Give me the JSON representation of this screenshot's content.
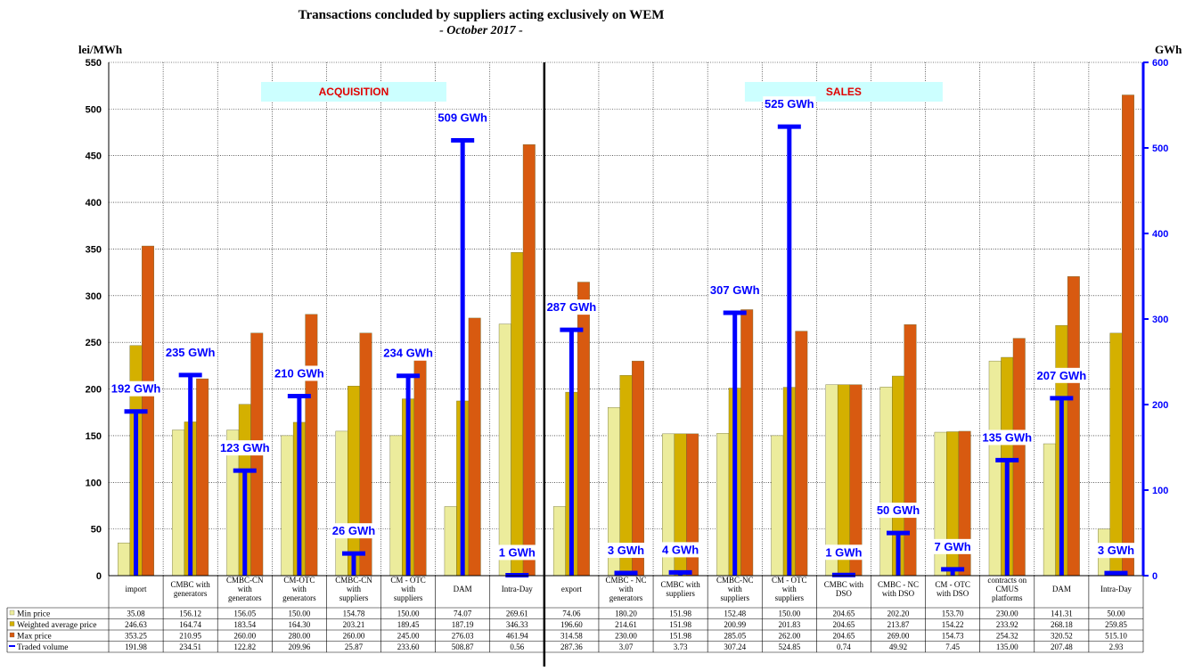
{
  "chart_data": {
    "type": "bar",
    "title": "Transactions concluded by suppliers acting exclusively on WEM",
    "subtitle": "- October 2017 -",
    "y_left_unit": "lei/MWh",
    "y_right_unit": "GWh",
    "ylim_left": [
      0,
      550
    ],
    "ylim_right": [
      0,
      600
    ],
    "y_left_ticks": [
      "0",
      "50",
      "100",
      "150",
      "200",
      "250",
      "300",
      "350",
      "400",
      "450",
      "500",
      "550"
    ],
    "y_right_ticks": [
      "0",
      "100",
      "200",
      "300",
      "400",
      "500",
      "600"
    ],
    "grid": true,
    "sections": [
      "ACQUISITION",
      "SALES"
    ],
    "categories": [
      [
        "import"
      ],
      [
        "CMBC with",
        "generators"
      ],
      [
        "CMBC-CN",
        "with",
        "generators"
      ],
      [
        "CM-OTC",
        "with",
        "generators"
      ],
      [
        "CMBC-CN",
        "with",
        "suppliers"
      ],
      [
        "CM - OTC",
        "with",
        "suppliers"
      ],
      [
        "DAM"
      ],
      [
        "Intra-Day"
      ],
      [
        "export"
      ],
      [
        "CMBC - NC",
        "with",
        "generators"
      ],
      [
        "CMBC with",
        "suppliers"
      ],
      [
        "CMBC-NC",
        "with",
        "suppliers"
      ],
      [
        "CM - OTC",
        "with",
        "suppliers"
      ],
      [
        "CMBC with",
        "DSO"
      ],
      [
        "CMBC - NC",
        "with DSO"
      ],
      [
        "CM - OTC",
        "with DSO"
      ],
      [
        "contracts on",
        "CMUS",
        "platforms"
      ],
      [
        "DAM"
      ],
      [
        "Intra-Day"
      ]
    ],
    "series": [
      {
        "name": "Min price",
        "color": "#ecec9c",
        "axis": "left",
        "values": [
          35.08,
          156.12,
          156.05,
          150.0,
          154.78,
          150.0,
          74.07,
          269.61,
          74.06,
          180.2,
          151.98,
          152.48,
          150.0,
          204.65,
          202.2,
          153.7,
          230.0,
          141.31,
          50.0
        ],
        "labels": [
          "35.08",
          "156.12",
          "156.05",
          "150.00",
          "154.78",
          "150.00",
          "74.07",
          "269.61",
          "74.06",
          "180.20",
          "151.98",
          "152.48",
          "150.00",
          "204.65",
          "202.20",
          "153.70",
          "230.00",
          "141.31",
          "50.00"
        ]
      },
      {
        "name": "Weighted average price",
        "color": "#d4b000",
        "axis": "left",
        "values": [
          246.63,
          164.74,
          183.54,
          164.3,
          203.21,
          189.45,
          187.19,
          346.33,
          196.6,
          214.61,
          151.98,
          200.99,
          201.83,
          204.65,
          213.87,
          154.22,
          233.92,
          268.18,
          259.85
        ],
        "labels": [
          "246.63",
          "164.74",
          "183.54",
          "164.30",
          "203.21",
          "189.45",
          "187.19",
          "346.33",
          "196.60",
          "214.61",
          "151.98",
          "200.99",
          "201.83",
          "204.65",
          "213.87",
          "154.22",
          "233.92",
          "268.18",
          "259.85"
        ]
      },
      {
        "name": "Max price",
        "color": "#d85a10",
        "axis": "left",
        "values": [
          353.25,
          210.95,
          260.0,
          280.0,
          260.0,
          245.0,
          276.03,
          461.94,
          314.58,
          230.0,
          151.98,
          285.05,
          262.0,
          204.65,
          269.0,
          154.73,
          254.32,
          320.52,
          515.1
        ],
        "labels": [
          "353.25",
          "210.95",
          "260.00",
          "280.00",
          "260.00",
          "245.00",
          "276.03",
          "461.94",
          "314.58",
          "230.00",
          "151.98",
          "285.05",
          "262.00",
          "204.65",
          "269.00",
          "154.73",
          "254.32",
          "320.52",
          "515.10"
        ]
      },
      {
        "name": "Traded volume",
        "color": "#0000ff",
        "axis": "right",
        "values": [
          191.98,
          234.51,
          122.82,
          209.96,
          25.87,
          233.6,
          508.87,
          0.56,
          287.36,
          3.07,
          3.73,
          307.24,
          524.85,
          0.74,
          49.92,
          7.45,
          135.0,
          207.48,
          2.93
        ],
        "labels": [
          "191.98",
          "234.51",
          "122.82",
          "209.96",
          "25.87",
          "233.60",
          "508.87",
          "0.56",
          "287.36",
          "3.07",
          "3.73",
          "307.24",
          "524.85",
          "0.74",
          "49.92",
          "7.45",
          "135.00",
          "207.48",
          "2.93"
        ],
        "point_labels": [
          "192 GWh",
          "235 GWh",
          "123 GWh",
          "210 GWh",
          "26 GWh",
          "234 GWh",
          "509 GWh",
          "1 GWh",
          "287 GWh",
          "3 GWh",
          "4 GWh",
          "307 GWh",
          "525 GWh",
          "1 GWh",
          "50 GWh",
          "7 GWh",
          "135 GWh",
          "207 GWh",
          "3 GWh"
        ]
      }
    ]
  }
}
